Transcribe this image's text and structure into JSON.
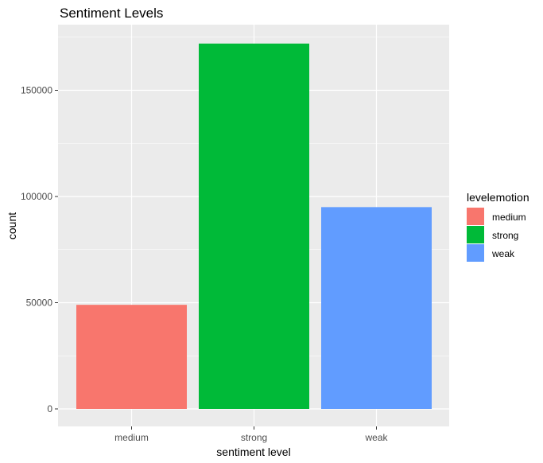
{
  "chart_data": {
    "type": "bar",
    "title": "Sentiment Levels",
    "xlabel": "sentiment level",
    "ylabel": "count",
    "categories": [
      "medium",
      "strong",
      "weak"
    ],
    "values": [
      49000,
      172000,
      95000
    ],
    "colors": [
      "#F8766D",
      "#00BA38",
      "#619CFF"
    ],
    "ylim": [
      0,
      180000
    ],
    "yticks": [
      0,
      50000,
      100000,
      150000
    ],
    "ytick_labels": [
      "0",
      "50000",
      "100000",
      "150000"
    ],
    "grid": true,
    "panel_background": "#EBEBEB",
    "grid_color": "#FFFFFF",
    "legend": {
      "title": "levelemotion",
      "position": "right",
      "entries": [
        "medium",
        "strong",
        "weak"
      ]
    }
  }
}
